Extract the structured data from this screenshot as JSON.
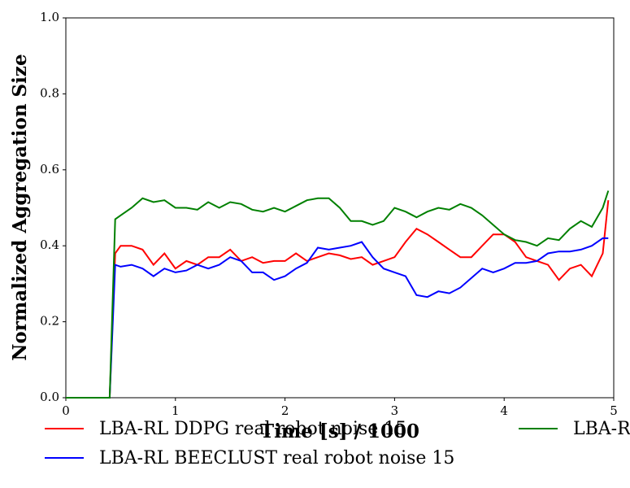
{
  "chart_data": {
    "type": "line",
    "xlabel": "Time [s] / 1000",
    "ylabel": "Normalized Aggregation Size",
    "xlim": [
      0,
      5
    ],
    "ylim": [
      0,
      1
    ],
    "xticks": [
      0,
      1,
      2,
      3,
      4,
      5
    ],
    "yticks": [
      {
        "value": 0,
        "label": "0.0"
      },
      {
        "value": 0.2,
        "label": "0.2"
      },
      {
        "value": 0.4,
        "label": "0.4"
      },
      {
        "value": 0.6,
        "label": "0.6"
      },
      {
        "value": 0.8,
        "label": "0.8"
      },
      {
        "value": 1,
        "label": "1.0"
      }
    ],
    "grid": false,
    "legend_loc": "below",
    "x": [
      0,
      0.4,
      0.45,
      0.5,
      0.6,
      0.7,
      0.8,
      0.9,
      1.0,
      1.1,
      1.2,
      1.3,
      1.4,
      1.5,
      1.6,
      1.7,
      1.8,
      1.9,
      2.0,
      2.1,
      2.2,
      2.3,
      2.4,
      2.5,
      2.6,
      2.7,
      2.8,
      2.9,
      3.0,
      3.1,
      3.2,
      3.3,
      3.4,
      3.5,
      3.6,
      3.7,
      3.8,
      3.9,
      4.0,
      4.1,
      4.2,
      4.3,
      4.4,
      4.5,
      4.6,
      4.7,
      4.8,
      4.9,
      4.95
    ],
    "series": [
      {
        "name": "LBA-RL DDPG real robot noise 15",
        "color": "#ff0000",
        "values": [
          0,
          0,
          0.38,
          0.4,
          0.4,
          0.39,
          0.35,
          0.38,
          0.34,
          0.36,
          0.35,
          0.37,
          0.37,
          0.39,
          0.36,
          0.37,
          0.355,
          0.36,
          0.36,
          0.38,
          0.36,
          0.37,
          0.38,
          0.375,
          0.365,
          0.37,
          0.35,
          0.36,
          0.37,
          0.41,
          0.445,
          0.43,
          0.41,
          0.39,
          0.37,
          0.37,
          0.4,
          0.43,
          0.43,
          0.41,
          0.37,
          0.36,
          0.35,
          0.31,
          0.34,
          0.35,
          0.32,
          0.38,
          0.52
        ]
      },
      {
        "name": "LBA-RL BEECLUST real robot noise 15",
        "color": "#0000ff",
        "values": [
          0,
          0,
          0.35,
          0.345,
          0.35,
          0.34,
          0.32,
          0.34,
          0.33,
          0.335,
          0.35,
          0.34,
          0.35,
          0.37,
          0.36,
          0.33,
          0.33,
          0.31,
          0.32,
          0.34,
          0.355,
          0.395,
          0.39,
          0.395,
          0.4,
          0.41,
          0.37,
          0.34,
          0.33,
          0.32,
          0.27,
          0.265,
          0.28,
          0.275,
          0.29,
          0.315,
          0.34,
          0.33,
          0.34,
          0.355,
          0.355,
          0.36,
          0.38,
          0.385,
          0.385,
          0.39,
          0.4,
          0.42,
          0.42
        ]
      },
      {
        "name": "LBA-R",
        "color": "#008000",
        "values": [
          0,
          0,
          0.47,
          0.48,
          0.5,
          0.525,
          0.515,
          0.52,
          0.5,
          0.5,
          0.495,
          0.515,
          0.5,
          0.515,
          0.51,
          0.495,
          0.49,
          0.5,
          0.49,
          0.505,
          0.52,
          0.525,
          0.525,
          0.5,
          0.465,
          0.465,
          0.455,
          0.465,
          0.5,
          0.49,
          0.475,
          0.49,
          0.5,
          0.495,
          0.51,
          0.5,
          0.48,
          0.455,
          0.43,
          0.415,
          0.41,
          0.4,
          0.42,
          0.415,
          0.445,
          0.465,
          0.45,
          0.5,
          0.545
        ]
      }
    ]
  }
}
